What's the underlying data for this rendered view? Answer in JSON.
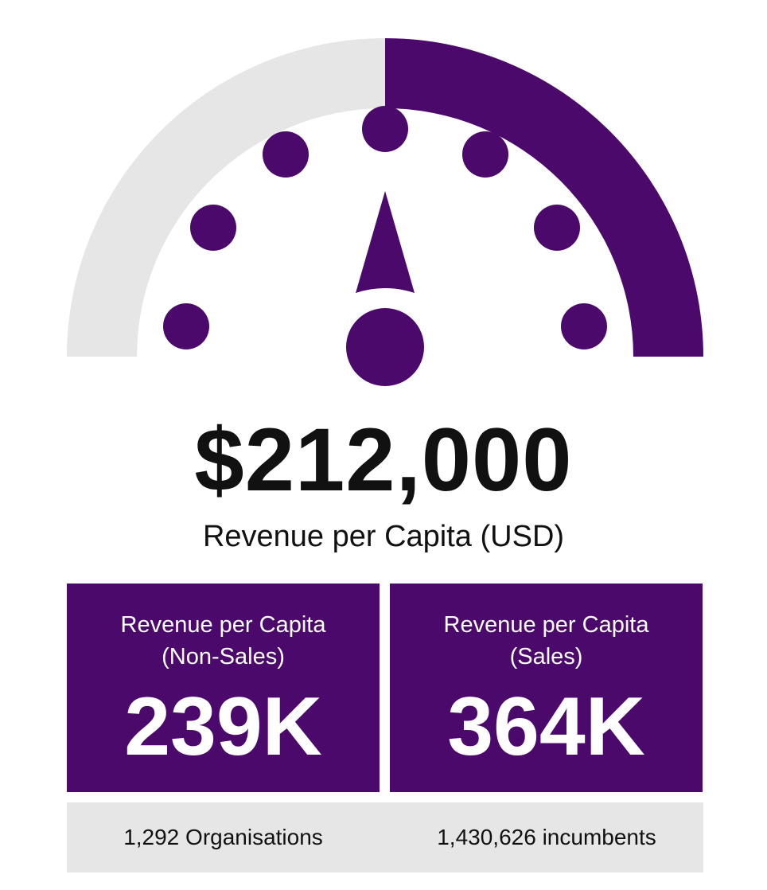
{
  "colors": {
    "accent": "#4b0a6b",
    "track": "#e6e6e6",
    "text": "#111111",
    "card_text": "#ffffff"
  },
  "gauge": {
    "icon": "speedometer-icon",
    "fill_fraction": 0.5
  },
  "headline": {
    "value": "$212,000",
    "label": "Revenue per Capita (USD)"
  },
  "cards": [
    {
      "label": "Revenue per Capita\n(Non-Sales)",
      "value": "239K"
    },
    {
      "label": "Revenue per Capita\n(Sales)",
      "value": "364K"
    }
  ],
  "footer": {
    "left": "1,292 Organisations",
    "right": "1,430,626 incumbents"
  }
}
